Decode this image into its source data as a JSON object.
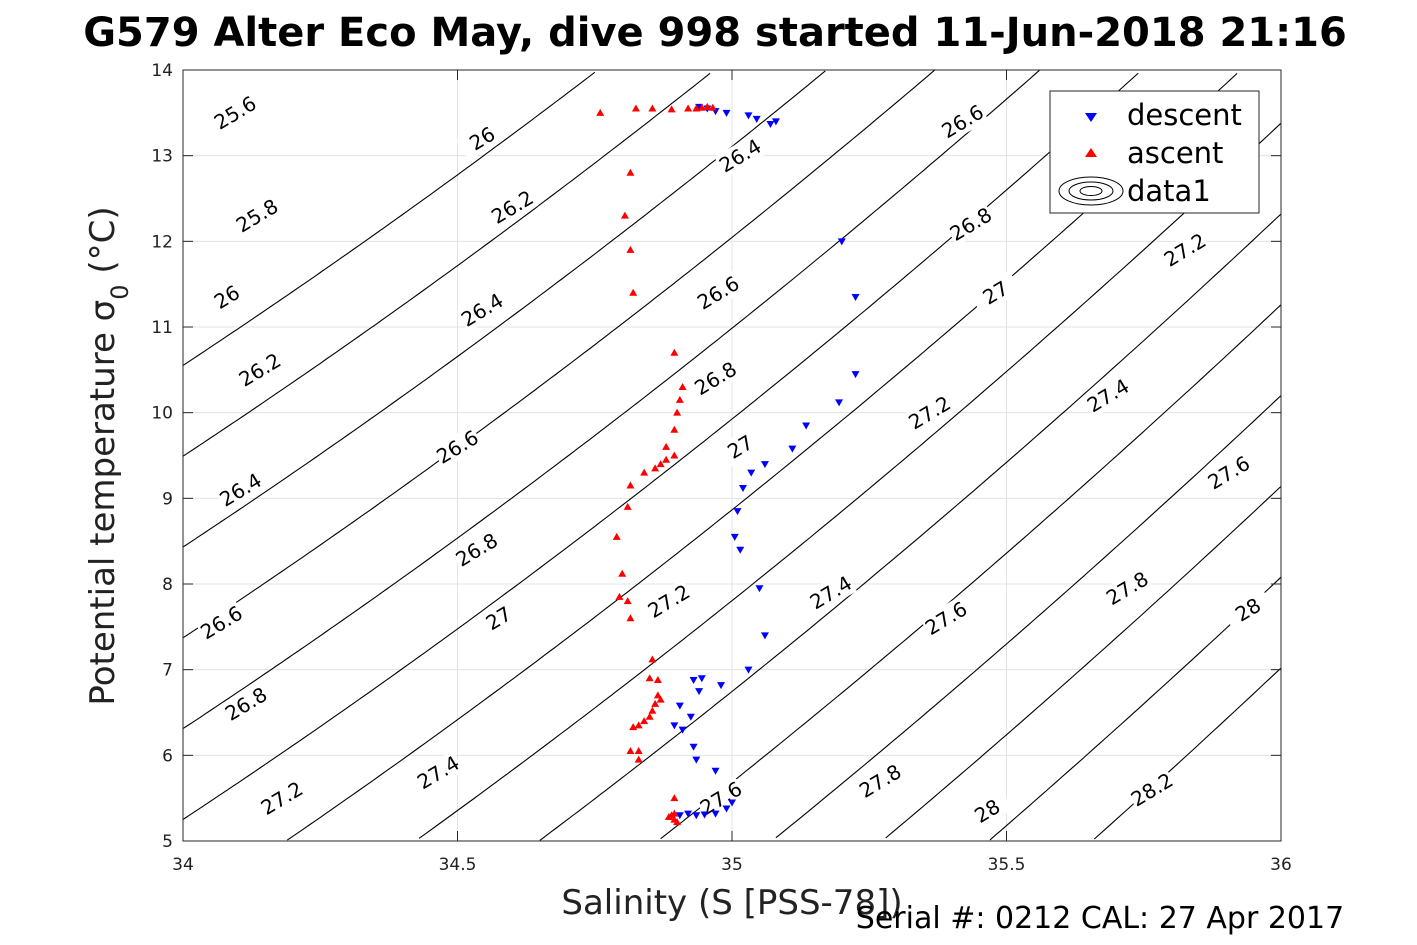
{
  "figure": {
    "title": "G579 Alter Eco May, dive 998 started 11-Jun-2018 21:16",
    "footer": "Serial #: 0212  CAL: 27 Apr 2017"
  },
  "chart_data": {
    "type": "scatter",
    "title": "G579 Alter Eco May, dive 998 started 11-Jun-2018 21:16",
    "xlabel": "Salinity (S [PSS-78])",
    "ylabel": "Potential temperature σ0 (°C)",
    "xlim": [
      34,
      36
    ],
    "ylim": [
      5,
      14
    ],
    "xticks": [
      "34",
      "34.5",
      "35",
      "35.5",
      "36"
    ],
    "yticks": [
      "5",
      "6",
      "7",
      "8",
      "9",
      "10",
      "11",
      "12",
      "13",
      "14"
    ],
    "grid": true,
    "legend_position": "top-right",
    "legend": [
      "descent",
      "ascent",
      "data1"
    ],
    "series": [
      {
        "name": "descent",
        "marker": "down-triangle",
        "color": "#0000ff",
        "points": [
          [
            34.94,
            13.57
          ],
          [
            34.955,
            13.55
          ],
          [
            34.97,
            13.52
          ],
          [
            34.99,
            13.5
          ],
          [
            35.03,
            13.47
          ],
          [
            35.045,
            13.43
          ],
          [
            35.07,
            13.37
          ],
          [
            35.08,
            13.4
          ],
          [
            35.2,
            12.0
          ],
          [
            35.225,
            11.35
          ],
          [
            35.225,
            10.45
          ],
          [
            35.195,
            10.12
          ],
          [
            35.135,
            9.85
          ],
          [
            35.11,
            9.58
          ],
          [
            35.06,
            9.4
          ],
          [
            35.035,
            9.3
          ],
          [
            35.02,
            9.12
          ],
          [
            35.01,
            8.85
          ],
          [
            35.005,
            8.55
          ],
          [
            35.015,
            8.4
          ],
          [
            35.05,
            7.95
          ],
          [
            35.06,
            7.4
          ],
          [
            35.03,
            7.0
          ],
          [
            34.93,
            6.88
          ],
          [
            34.945,
            6.9
          ],
          [
            34.94,
            6.75
          ],
          [
            34.98,
            6.82
          ],
          [
            34.905,
            6.58
          ],
          [
            34.925,
            6.45
          ],
          [
            34.895,
            6.35
          ],
          [
            34.91,
            6.3
          ],
          [
            34.93,
            6.1
          ],
          [
            34.935,
            5.95
          ],
          [
            34.97,
            5.82
          ],
          [
            34.905,
            5.3
          ],
          [
            34.92,
            5.32
          ],
          [
            34.935,
            5.3
          ],
          [
            34.95,
            5.31
          ],
          [
            34.97,
            5.32
          ],
          [
            34.99,
            5.38
          ],
          [
            35.0,
            5.45
          ]
        ]
      },
      {
        "name": "ascent",
        "marker": "up-triangle",
        "color": "#ff0000",
        "points": [
          [
            34.76,
            13.5
          ],
          [
            34.825,
            13.55
          ],
          [
            34.855,
            13.55
          ],
          [
            34.89,
            13.54
          ],
          [
            34.92,
            13.55
          ],
          [
            34.935,
            13.55
          ],
          [
            34.945,
            13.56
          ],
          [
            34.955,
            13.57
          ],
          [
            34.965,
            13.56
          ],
          [
            34.815,
            12.8
          ],
          [
            34.805,
            12.3
          ],
          [
            34.815,
            11.9
          ],
          [
            34.82,
            11.4
          ],
          [
            34.895,
            10.7
          ],
          [
            34.91,
            10.3
          ],
          [
            34.905,
            10.15
          ],
          [
            34.9,
            10.0
          ],
          [
            34.895,
            9.8
          ],
          [
            34.88,
            9.6
          ],
          [
            34.895,
            9.5
          ],
          [
            34.88,
            9.45
          ],
          [
            34.87,
            9.4
          ],
          [
            34.86,
            9.35
          ],
          [
            34.84,
            9.3
          ],
          [
            34.815,
            9.15
          ],
          [
            34.81,
            8.9
          ],
          [
            34.79,
            8.55
          ],
          [
            34.8,
            8.12
          ],
          [
            34.795,
            7.85
          ],
          [
            34.81,
            7.8
          ],
          [
            34.815,
            7.6
          ],
          [
            34.855,
            7.12
          ],
          [
            34.865,
            6.88
          ],
          [
            34.85,
            6.9
          ],
          [
            34.865,
            6.7
          ],
          [
            34.87,
            6.65
          ],
          [
            34.86,
            6.6
          ],
          [
            34.855,
            6.52
          ],
          [
            34.85,
            6.45
          ],
          [
            34.84,
            6.4
          ],
          [
            34.83,
            6.35
          ],
          [
            34.82,
            6.33
          ],
          [
            34.815,
            6.05
          ],
          [
            34.83,
            6.05
          ],
          [
            34.83,
            5.95
          ],
          [
            34.895,
            5.5
          ],
          [
            34.89,
            5.3
          ],
          [
            34.895,
            5.25
          ],
          [
            34.9,
            5.22
          ],
          [
            34.885,
            5.28
          ],
          [
            34.895,
            5.32
          ]
        ]
      }
    ],
    "contours": {
      "name": "data1",
      "quantity": "sigma0",
      "levels": [
        {
          "value": 25.6,
          "label": "25.6",
          "anchors": [
            [
              34.095,
              13.5
            ]
          ]
        },
        {
          "value": 25.8,
          "label": "25.8",
          "anchors": [
            [
              34.135,
              12.3
            ]
          ]
        },
        {
          "value": 26.0,
          "label": "26",
          "anchors": [
            [
              34.08,
              11.35
            ],
            [
              34.545,
              13.2
            ]
          ]
        },
        {
          "value": 26.2,
          "label": "26.2",
          "anchors": [
            [
              34.14,
              10.5
            ],
            [
              34.6,
              12.4
            ]
          ]
        },
        {
          "value": 26.4,
          "label": "26.4",
          "anchors": [
            [
              34.105,
              9.1
            ],
            [
              34.545,
              11.2
            ],
            [
              35.015,
              13.0
            ]
          ]
        },
        {
          "value": 26.6,
          "label": "26.6",
          "anchors": [
            [
              34.07,
              7.55
            ],
            [
              34.5,
              9.6
            ],
            [
              34.975,
              11.4
            ],
            [
              35.42,
              13.4
            ]
          ]
        },
        {
          "value": 26.8,
          "label": "26.8",
          "anchors": [
            [
              34.115,
              6.6
            ],
            [
              34.535,
              8.4
            ],
            [
              34.97,
              10.4
            ],
            [
              35.435,
              12.2
            ]
          ]
        },
        {
          "value": 27.0,
          "label": "27",
          "anchors": [
            [
              34.575,
              7.6
            ],
            [
              35.015,
              9.6
            ],
            [
              35.48,
              11.4
            ]
          ]
        },
        {
          "value": 27.2,
          "label": "27.2",
          "anchors": [
            [
              34.18,
              5.5
            ],
            [
              34.885,
              7.8
            ],
            [
              35.36,
              10.0
            ],
            [
              35.825,
              11.9
            ]
          ]
        },
        {
          "value": 27.4,
          "label": "27.4",
          "anchors": [
            [
              34.465,
              5.8
            ],
            [
              35.18,
              7.9
            ],
            [
              35.685,
              10.2
            ]
          ]
        },
        {
          "value": 27.6,
          "label": "27.6",
          "anchors": [
            [
              34.98,
              5.5
            ],
            [
              35.39,
              7.6
            ],
            [
              35.905,
              9.3
            ]
          ]
        },
        {
          "value": 27.8,
          "label": "27.8",
          "anchors": [
            [
              35.27,
              5.7
            ],
            [
              35.72,
              7.95
            ]
          ]
        },
        {
          "value": 28.0,
          "label": "28",
          "anchors": [
            [
              35.465,
              5.35
            ],
            [
              35.94,
              7.7
            ]
          ]
        },
        {
          "value": 28.2,
          "label": "28.2",
          "anchors": [
            [
              35.765,
              5.6
            ]
          ]
        }
      ]
    }
  }
}
